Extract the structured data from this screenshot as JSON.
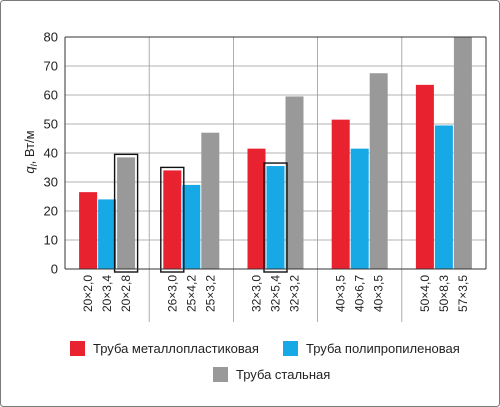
{
  "chart_data": {
    "type": "bar",
    "ylabel": "q_l, Вт/м",
    "ylabel_main": "q",
    "ylabel_sub": "l",
    "ylabel_unit": ", Вт/м",
    "ylim": [
      0,
      80
    ],
    "yticks": [
      "0",
      "10",
      "20",
      "30",
      "40",
      "50",
      "60",
      "70",
      "80"
    ],
    "grid": true,
    "legend_position": "bottom",
    "groups": [
      {
        "labels": [
          "20×2,0",
          "20×3,4",
          "20×2,8"
        ]
      },
      {
        "labels": [
          "26×3,0",
          "25×4,2",
          "25×3,2"
        ]
      },
      {
        "labels": [
          "32×3,0",
          "32×5,4",
          "32×3,2"
        ]
      },
      {
        "labels": [
          "40×3,5",
          "40×6,7",
          "40×3,5"
        ]
      },
      {
        "labels": [
          "50×4,0",
          "50×8,3",
          "57×3,5"
        ]
      }
    ],
    "series": [
      {
        "name": "Труба металлопластиковая",
        "color": "#e8222e",
        "values": [
          26.5,
          34,
          41.5,
          51.5,
          63.5
        ]
      },
      {
        "name": "Труба полипропиленовая",
        "color": "#17a8e6",
        "values": [
          24,
          29,
          35.5,
          41.5,
          49.5
        ]
      },
      {
        "name": "Труба стальная",
        "color": "#999999",
        "values": [
          38.5,
          47,
          59.5,
          67.5,
          80
        ]
      }
    ],
    "highlighted_bars": [
      {
        "group": 0,
        "series": 2
      },
      {
        "group": 1,
        "series": 0
      },
      {
        "group": 2,
        "series": 1
      }
    ]
  }
}
